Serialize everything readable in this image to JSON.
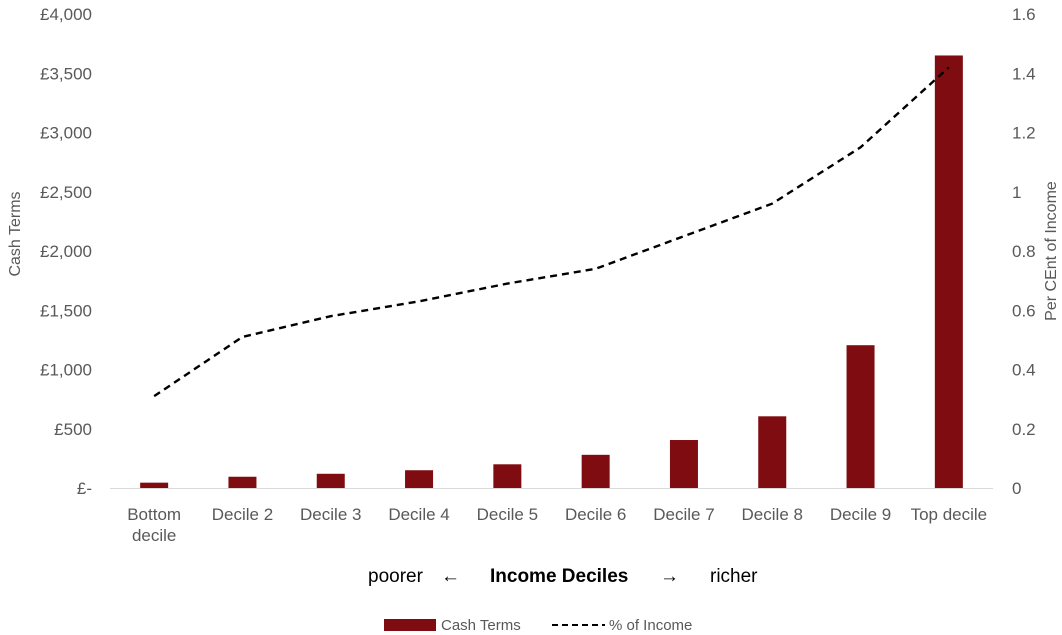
{
  "chart_data": {
    "type": "bar",
    "categories": [
      "Bottom decile",
      "Decile 2",
      "Decile 3",
      "Decile 4",
      "Decile 5",
      "Decile 6",
      "Decile 7",
      "Decile 8",
      "Decile 9",
      "Top decile"
    ],
    "category_lines": [
      [
        "Bottom",
        "decile"
      ],
      [
        "Decile 2"
      ],
      [
        "Decile 3"
      ],
      [
        "Decile 4"
      ],
      [
        "Decile 5"
      ],
      [
        "Decile 6"
      ],
      [
        "Decile 7"
      ],
      [
        "Decile 8"
      ],
      [
        "Decile 9"
      ],
      [
        "Top decile"
      ]
    ],
    "series": [
      {
        "name": "Cash Terms",
        "type": "bar",
        "axis": "left",
        "color": "#7F0C10",
        "values": [
          45,
          95,
          120,
          150,
          200,
          280,
          405,
          605,
          1205,
          3650
        ]
      },
      {
        "name": "% of Income",
        "type": "line",
        "axis": "right",
        "color": "#000000",
        "style": "dashed",
        "values": [
          0.31,
          0.51,
          0.58,
          0.63,
          0.69,
          0.74,
          0.85,
          0.96,
          1.15,
          1.42
        ]
      }
    ],
    "y_left": {
      "label": "Cash Terms",
      "ylim": [
        0,
        4000
      ],
      "ticks": [
        0,
        500,
        1000,
        1500,
        2000,
        2500,
        3000,
        3500,
        4000
      ],
      "tick_labels": [
        "£-",
        "£500",
        "£1,000",
        "£1,500",
        "£2,000",
        "£2,500",
        "£3,000",
        "£3,500",
        "£4,000"
      ]
    },
    "y_right": {
      "label": "Per CEnt of Income",
      "ylim": [
        0,
        1.6
      ],
      "ticks": [
        0,
        0.2,
        0.4,
        0.6,
        0.8,
        1,
        1.2,
        1.4,
        1.6
      ],
      "tick_labels": [
        "0",
        "0.2",
        "0.4",
        "0.6",
        "0.8",
        "1",
        "1.2",
        "1.4",
        "1.6"
      ]
    },
    "x_title": {
      "left": "poorer",
      "left_arrow": "←",
      "center": "Income Deciles",
      "right_arrow": "→",
      "right": "richer"
    },
    "grid": false,
    "legend_position": "bottom",
    "legend": [
      "Cash Terms",
      "% of Income"
    ]
  }
}
